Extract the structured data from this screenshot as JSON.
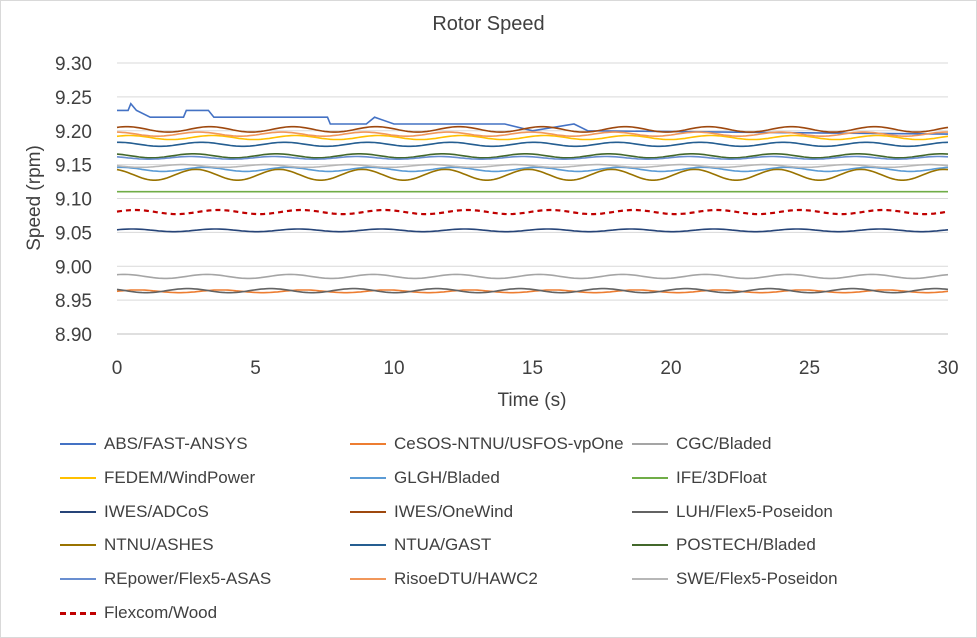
{
  "chart_data": {
    "type": "line",
    "title": "Rotor Speed",
    "xlabel": "Time (s)",
    "ylabel": "Speed (rpm)",
    "xlim": [
      0,
      30
    ],
    "ylim": [
      8.9,
      9.3
    ],
    "x_ticks": [
      "0",
      "5",
      "10",
      "15",
      "20",
      "25",
      "30"
    ],
    "y_ticks": [
      "8.90",
      "8.95",
      "9.00",
      "9.05",
      "9.10",
      "9.15",
      "9.20",
      "9.25",
      "9.30"
    ],
    "grid": "horizontal",
    "legend_position": "bottom",
    "series": [
      {
        "name": "ABS/FAST-ANSYS",
        "color": "#4472c4",
        "dashed": false,
        "points": [
          [
            0,
            9.23
          ],
          [
            0.4,
            9.23
          ],
          [
            0.5,
            9.24
          ],
          [
            0.7,
            9.23
          ],
          [
            1.2,
            9.22
          ],
          [
            2.4,
            9.22
          ],
          [
            2.5,
            9.23
          ],
          [
            3.3,
            9.23
          ],
          [
            3.5,
            9.22
          ],
          [
            7.6,
            9.22
          ],
          [
            7.7,
            9.21
          ],
          [
            9.0,
            9.21
          ],
          [
            9.3,
            9.22
          ],
          [
            10.0,
            9.21
          ],
          [
            14.0,
            9.21
          ],
          [
            15.0,
            9.2
          ],
          [
            16.5,
            9.21
          ],
          [
            17.0,
            9.2
          ],
          [
            30,
            9.195
          ]
        ]
      },
      {
        "name": "CeSOS-NTNU/USFOS-vpOne",
        "color": "#ed7d31",
        "dashed": false,
        "base": 8.963,
        "amp": 0.002,
        "period": 3.0,
        "phase": 0.0
      },
      {
        "name": "CGC/Bladed",
        "color": "#a5a5a5",
        "dashed": false,
        "base": 8.985,
        "amp": 0.003,
        "period": 3.0,
        "phase": 0.5
      },
      {
        "name": "FEDEM/WindPower",
        "color": "#ffc000",
        "dashed": false,
        "base": 9.19,
        "amp": 0.003,
        "period": 3.0,
        "phase": 0.3
      },
      {
        "name": "GLGH/Bladed",
        "color": "#5b9bd5",
        "dashed": false,
        "base": 9.143,
        "amp": 0.003,
        "period": 3.0,
        "phase": 0.6
      },
      {
        "name": "IFE/3DFloat",
        "color": "#70ad47",
        "dashed": false,
        "base": 9.11,
        "amp": 0.0,
        "period": 3.0,
        "phase": 0.0
      },
      {
        "name": "IWES/ADCoS",
        "color": "#264478",
        "dashed": false,
        "base": 9.053,
        "amp": 0.002,
        "period": 3.0,
        "phase": 0.2
      },
      {
        "name": "IWES/OneWind",
        "color": "#9e480e",
        "dashed": false,
        "base": 9.202,
        "amp": 0.004,
        "period": 3.0,
        "phase": 0.4
      },
      {
        "name": "LUH/Flex5-Poseidon",
        "color": "#636363",
        "dashed": false,
        "base": 8.964,
        "amp": 0.003,
        "period": 3.0,
        "phase": 1.2
      },
      {
        "name": "NTNU/ASHES",
        "color": "#997300",
        "dashed": false,
        "base": 9.135,
        "amp": 0.008,
        "period": 3.0,
        "phase": 0.9
      },
      {
        "name": "NTUA/GAST",
        "color": "#255e91",
        "dashed": false,
        "base": 9.18,
        "amp": 0.003,
        "period": 3.0,
        "phase": 0.7
      },
      {
        "name": "POSTECH/Bladed",
        "color": "#43682b",
        "dashed": false,
        "base": 9.163,
        "amp": 0.003,
        "period": 3.0,
        "phase": 1.0
      },
      {
        "name": "REpower/Flex5-ASAS",
        "color": "#698ed0",
        "dashed": false,
        "base": 9.16,
        "amp": 0.002,
        "period": 3.0,
        "phase": 1.1
      },
      {
        "name": "RisoeDTU/HAWC2",
        "color": "#f1975a",
        "dashed": false,
        "base": 9.195,
        "amp": 0.003,
        "period": 3.0,
        "phase": 0.8
      },
      {
        "name": "SWE/Flex5-Poseidon",
        "color": "#b7b7b7",
        "dashed": false,
        "base": 9.148,
        "amp": 0.002,
        "period": 3.0,
        "phase": 1.4
      },
      {
        "name": "Flexcom/Wood",
        "color": "#c00000",
        "dashed": true,
        "base": 9.08,
        "amp": 0.003,
        "period": 3.0,
        "phase": 0.1
      }
    ]
  }
}
